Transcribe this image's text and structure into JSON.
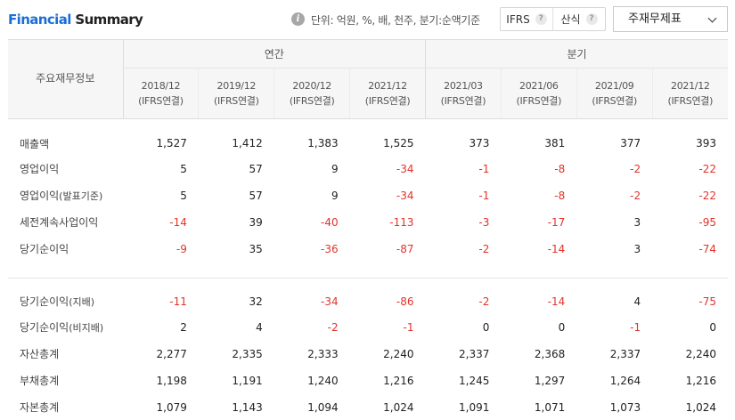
{
  "header": {
    "title_part1": "Financial",
    "title_part2": " Summary",
    "unit_text": "단위: 억원, %, 배, 천주, 분기:순액기준",
    "ifrs_label": "IFRS",
    "consolidated_label": "산식",
    "help_glyph": "?",
    "info_glyph": "i",
    "select_value": "주재무제표"
  },
  "table": {
    "row_header": "주요재무정보",
    "group_annual": "연간",
    "group_quarter": "분기",
    "periods": [
      {
        "date": "2018/12",
        "basis": "(IFRS연결)"
      },
      {
        "date": "2019/12",
        "basis": "(IFRS연결)"
      },
      {
        "date": "2020/12",
        "basis": "(IFRS연결)"
      },
      {
        "date": "2021/12",
        "basis": "(IFRS연결)"
      },
      {
        "date": "2021/03",
        "basis": "(IFRS연결)"
      },
      {
        "date": "2021/06",
        "basis": "(IFRS연결)"
      },
      {
        "date": "2021/09",
        "basis": "(IFRS연결)"
      },
      {
        "date": "2021/12",
        "basis": "(IFRS연결)"
      }
    ],
    "rows": [
      {
        "label": "매출액",
        "values": [
          "1,527",
          "1,412",
          "1,383",
          "1,525",
          "373",
          "381",
          "377",
          "393"
        ]
      },
      {
        "label": "영업이익",
        "values": [
          "5",
          "57",
          "9",
          "-34",
          "-1",
          "-8",
          "-2",
          "-22"
        ]
      },
      {
        "label": "영업이익",
        "label_sub": "(발표기준)",
        "values": [
          "5",
          "57",
          "9",
          "-34",
          "-1",
          "-8",
          "-2",
          "-22"
        ]
      },
      {
        "label": "세전계속사업이익",
        "values": [
          "-14",
          "39",
          "-40",
          "-113",
          "-3",
          "-17",
          "3",
          "-95"
        ]
      },
      {
        "label": "당기순이익",
        "values": [
          "-9",
          "35",
          "-36",
          "-87",
          "-2",
          "-14",
          "3",
          "-74"
        ]
      },
      {
        "label": "당기순이익",
        "label_sub": "(지배)",
        "values": [
          "-11",
          "32",
          "-34",
          "-86",
          "-2",
          "-14",
          "4",
          "-75"
        ]
      },
      {
        "label": "당기순이익",
        "label_sub": "(비지배)",
        "values": [
          "2",
          "4",
          "-2",
          "-1",
          "0",
          "0",
          "-1",
          "0"
        ]
      },
      {
        "label": "자산총계",
        "values": [
          "2,277",
          "2,335",
          "2,333",
          "2,240",
          "2,337",
          "2,368",
          "2,337",
          "2,240"
        ]
      },
      {
        "label": "부채총계",
        "values": [
          "1,198",
          "1,191",
          "1,240",
          "1,216",
          "1,245",
          "1,297",
          "1,264",
          "1,216"
        ]
      },
      {
        "label": "자본총계",
        "values": [
          "1,079",
          "1,143",
          "1,094",
          "1,024",
          "1,091",
          "1,071",
          "1,073",
          "1,024"
        ]
      }
    ]
  },
  "colors": {
    "accent_blue": "#1a6fd6",
    "negative_red": "#e2332c"
  }
}
